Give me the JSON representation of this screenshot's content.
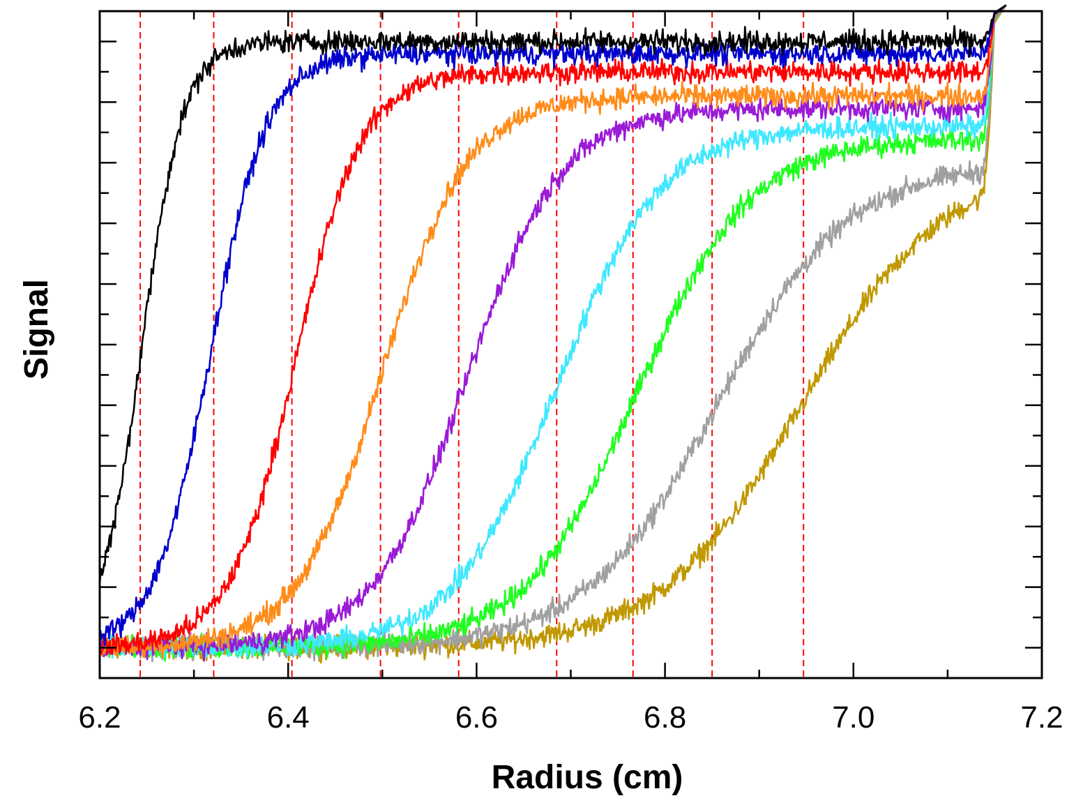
{
  "chart_data": {
    "type": "line",
    "xlabel": "Radius (cm)",
    "ylabel": "Signal",
    "xlim": [
      6.2,
      7.2
    ],
    "ylim": [
      -0.05,
      1.05
    ],
    "x_ticks": [
      "6.2",
      "6.4",
      "6.6",
      "6.8",
      "7.0",
      "7.2"
    ],
    "y_tick_labels_shown": false,
    "grid": false,
    "legend": "none",
    "meniscus_end": 7.15,
    "reference_lines": {
      "style": "dashed",
      "color": "#ff0000",
      "x": [
        6.243,
        6.321,
        6.404,
        6.498,
        6.581,
        6.685,
        6.766,
        6.85,
        6.947
      ]
    },
    "series": [
      {
        "color": "#000000",
        "midpoint": 6.245,
        "width": 0.022,
        "plateau": 1.0
      },
      {
        "color": "#0000cc",
        "midpoint": 6.318,
        "width": 0.03,
        "plateau": 0.98
      },
      {
        "color": "#ff0000",
        "midpoint": 6.408,
        "width": 0.035,
        "plateau": 0.95
      },
      {
        "color": "#ff8c1a",
        "midpoint": 6.5,
        "width": 0.045,
        "plateau": 0.91
      },
      {
        "color": "#9a1ad6",
        "midpoint": 6.59,
        "width": 0.05,
        "plateau": 0.89
      },
      {
        "color": "#40e8ff",
        "midpoint": 6.685,
        "width": 0.055,
        "plateau": 0.86
      },
      {
        "color": "#20ff20",
        "midpoint": 6.77,
        "width": 0.06,
        "plateau": 0.84
      },
      {
        "color": "#a0a0a0",
        "midpoint": 6.855,
        "width": 0.07,
        "plateau": 0.8
      },
      {
        "color": "#c09800",
        "midpoint": 6.945,
        "width": 0.075,
        "plateau": 0.8
      }
    ]
  }
}
